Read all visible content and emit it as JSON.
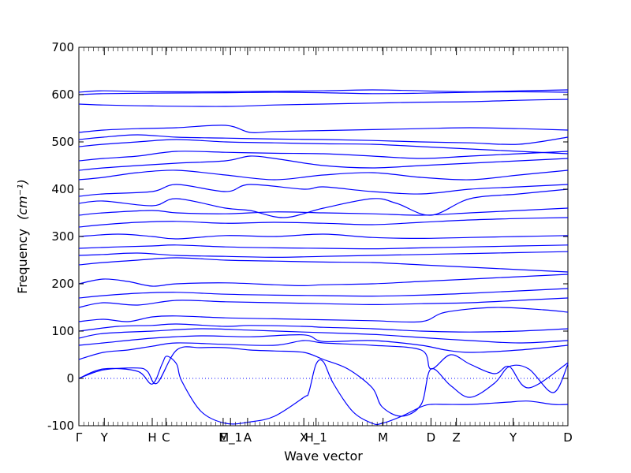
{
  "chart_data": {
    "type": "line",
    "xlabel": "Wave vector",
    "ylabel": "Frequency",
    "ylabel_unit": "(cm⁻¹)",
    "ylim": [
      -100,
      700
    ],
    "y_ticks": [
      -100,
      0,
      100,
      200,
      300,
      400,
      500,
      600,
      700
    ],
    "x_ticks": [
      {
        "label": "Γ",
        "x": 0.0
      },
      {
        "label": "Y",
        "x": 0.052
      },
      {
        "label": "H",
        "x": 0.15
      },
      {
        "label": "C",
        "x": 0.178
      },
      {
        "label": "E",
        "x": 0.295
      },
      {
        "label": "M_1",
        "x": 0.31
      },
      {
        "label": "A",
        "x": 0.345
      },
      {
        "label": "X",
        "x": 0.46
      },
      {
        "label": "H_1",
        "x": 0.485
      },
      {
        "label": "M",
        "x": 0.622
      },
      {
        "label": "D",
        "x": 0.72
      },
      {
        "label": "Z",
        "x": 0.772
      },
      {
        "label": "Y",
        "x": 0.888
      },
      {
        "label": "D",
        "x": 1.0
      }
    ],
    "zero_line": true,
    "colors": {
      "bands": "#0000ff",
      "axes": "#000000",
      "zero_line": "#0000ff"
    },
    "series": [
      {
        "x": [
          0,
          0.05,
          0.12,
          0.15,
          0.17,
          0.18,
          0.2,
          0.21,
          0.25,
          0.3,
          0.35,
          0.4,
          0.46,
          0.47,
          0.485,
          0.5,
          0.52,
          0.56,
          0.6,
          0.62,
          0.66,
          0.7,
          0.72,
          0.75,
          0.8,
          0.85,
          0.88,
          0.92,
          0.97,
          1.0
        ],
        "y": [
          0,
          20,
          15,
          -12,
          30,
          47,
          30,
          -5,
          -70,
          -95,
          -92,
          -80,
          -40,
          -30,
          30,
          35,
          -10,
          -70,
          -95,
          -95,
          -80,
          -60,
          -55,
          -55,
          -55,
          -52,
          -50,
          -48,
          -55,
          -55
        ]
      },
      {
        "x": [
          0,
          0.05,
          0.12,
          0.14,
          0.16,
          0.2,
          0.25,
          0.3,
          0.35,
          0.4,
          0.46,
          0.5,
          0.55,
          0.6,
          0.62,
          0.66,
          0.7,
          0.72,
          0.76,
          0.8,
          0.85,
          0.88,
          0.92,
          0.97,
          1.0
        ],
        "y": [
          0,
          18,
          22,
          15,
          -10,
          60,
          65,
          65,
          60,
          58,
          55,
          40,
          20,
          -20,
          -60,
          -80,
          -55,
          20,
          -15,
          -40,
          -10,
          25,
          20,
          -30,
          30
        ]
      },
      {
        "x": [
          0,
          0.05,
          0.1,
          0.15,
          0.2,
          0.3,
          0.4,
          0.46,
          0.5,
          0.6,
          0.7,
          0.72,
          0.76,
          0.8,
          0.85,
          0.88,
          0.92,
          1.0
        ],
        "y": [
          40,
          55,
          60,
          68,
          75,
          72,
          70,
          80,
          75,
          70,
          60,
          20,
          50,
          30,
          10,
          25,
          -20,
          33
        ]
      },
      {
        "x": [
          0,
          0.05,
          0.15,
          0.25,
          0.35,
          0.46,
          0.5,
          0.6,
          0.7,
          0.75,
          0.8,
          0.9,
          1.0
        ],
        "y": [
          70,
          75,
          85,
          90,
          88,
          92,
          78,
          80,
          70,
          60,
          55,
          60,
          70
        ]
      },
      {
        "x": [
          0,
          0.05,
          0.15,
          0.25,
          0.35,
          0.46,
          0.55,
          0.62,
          0.72,
          0.8,
          0.9,
          1.0
        ],
        "y": [
          85,
          95,
          100,
          105,
          102,
          98,
          95,
          92,
          85,
          80,
          75,
          80
        ]
      },
      {
        "x": [
          0,
          0.08,
          0.15,
          0.2,
          0.3,
          0.35,
          0.46,
          0.5,
          0.6,
          0.7,
          0.8,
          0.9,
          1.0
        ],
        "y": [
          100,
          110,
          112,
          115,
          110,
          112,
          110,
          108,
          105,
          100,
          98,
          100,
          105
        ]
      },
      {
        "x": [
          0,
          0.05,
          0.1,
          0.15,
          0.2,
          0.3,
          0.4,
          0.5,
          0.6,
          0.7,
          0.75,
          0.85,
          0.95,
          1.0
        ],
        "y": [
          120,
          125,
          120,
          130,
          132,
          128,
          126,
          124,
          122,
          120,
          140,
          150,
          145,
          140
        ]
      },
      {
        "x": [
          0,
          0.05,
          0.12,
          0.2,
          0.3,
          0.4,
          0.5,
          0.6,
          0.7,
          0.8,
          0.9,
          1.0
        ],
        "y": [
          150,
          160,
          155,
          165,
          162,
          160,
          158,
          156,
          158,
          160,
          165,
          170
        ]
      },
      {
        "x": [
          0,
          0.05,
          0.12,
          0.2,
          0.3,
          0.4,
          0.5,
          0.6,
          0.7,
          0.8,
          0.9,
          1.0
        ],
        "y": [
          170,
          175,
          180,
          182,
          178,
          176,
          175,
          174,
          176,
          180,
          185,
          190
        ]
      },
      {
        "x": [
          0,
          0.05,
          0.1,
          0.15,
          0.2,
          0.3,
          0.4,
          0.46,
          0.5,
          0.6,
          0.7,
          0.8,
          0.9,
          1.0
        ],
        "y": [
          200,
          210,
          205,
          195,
          200,
          202,
          198,
          196,
          198,
          200,
          205,
          210,
          215,
          220
        ]
      },
      {
        "x": [
          0,
          0.05,
          0.12,
          0.2,
          0.3,
          0.4,
          0.5,
          0.6,
          0.7,
          0.8,
          0.9,
          1.0
        ],
        "y": [
          240,
          245,
          250,
          255,
          250,
          248,
          246,
          245,
          240,
          235,
          230,
          225
        ]
      },
      {
        "x": [
          0,
          0.05,
          0.12,
          0.2,
          0.3,
          0.4,
          0.5,
          0.6,
          0.7,
          0.8,
          0.9,
          1.0
        ],
        "y": [
          260,
          262,
          265,
          260,
          258,
          256,
          258,
          260,
          262,
          264,
          266,
          268
        ]
      },
      {
        "x": [
          0,
          0.08,
          0.15,
          0.2,
          0.3,
          0.4,
          0.5,
          0.6,
          0.7,
          0.8,
          0.9,
          1.0
        ],
        "y": [
          275,
          278,
          280,
          282,
          278,
          276,
          275,
          274,
          276,
          278,
          280,
          282
        ]
      },
      {
        "x": [
          0,
          0.08,
          0.15,
          0.2,
          0.3,
          0.4,
          0.5,
          0.6,
          0.7,
          0.8,
          0.9,
          1.0
        ],
        "y": [
          300,
          305,
          300,
          295,
          302,
          300,
          305,
          298,
          296,
          298,
          300,
          302
        ]
      },
      {
        "x": [
          0,
          0.05,
          0.12,
          0.2,
          0.3,
          0.4,
          0.5,
          0.6,
          0.7,
          0.8,
          0.9,
          1.0
        ],
        "y": [
          320,
          325,
          330,
          332,
          328,
          330,
          328,
          325,
          330,
          335,
          338,
          340
        ]
      },
      {
        "x": [
          0,
          0.05,
          0.15,
          0.2,
          0.3,
          0.4,
          0.5,
          0.6,
          0.7,
          0.8,
          0.9,
          1.0
        ],
        "y": [
          345,
          350,
          355,
          350,
          348,
          352,
          350,
          348,
          345,
          350,
          355,
          360
        ]
      },
      {
        "x": [
          0,
          0.05,
          0.15,
          0.2,
          0.3,
          0.35,
          0.42,
          0.5,
          0.6,
          0.65,
          0.72,
          0.8,
          0.9,
          1.0
        ],
        "y": [
          370,
          375,
          365,
          380,
          360,
          355,
          340,
          360,
          380,
          370,
          345,
          380,
          390,
          400
        ]
      },
      {
        "x": [
          0,
          0.05,
          0.15,
          0.2,
          0.3,
          0.35,
          0.46,
          0.5,
          0.6,
          0.7,
          0.8,
          0.9,
          1.0
        ],
        "y": [
          385,
          390,
          395,
          410,
          395,
          410,
          400,
          405,
          395,
          390,
          400,
          405,
          410
        ]
      },
      {
        "x": [
          0,
          0.05,
          0.12,
          0.2,
          0.3,
          0.4,
          0.5,
          0.6,
          0.7,
          0.8,
          0.9,
          1.0
        ],
        "y": [
          420,
          425,
          435,
          440,
          430,
          420,
          430,
          435,
          425,
          420,
          430,
          440
        ]
      },
      {
        "x": [
          0,
          0.05,
          0.12,
          0.2,
          0.3,
          0.35,
          0.4,
          0.5,
          0.6,
          0.7,
          0.8,
          0.9,
          1.0
        ],
        "y": [
          440,
          445,
          450,
          455,
          460,
          470,
          465,
          450,
          445,
          450,
          455,
          460,
          465
        ]
      },
      {
        "x": [
          0,
          0.05,
          0.12,
          0.2,
          0.3,
          0.4,
          0.5,
          0.6,
          0.7,
          0.8,
          0.9,
          1.0
        ],
        "y": [
          460,
          465,
          470,
          480,
          478,
          476,
          475,
          470,
          465,
          470,
          475,
          480
        ]
      },
      {
        "x": [
          0,
          0.05,
          0.12,
          0.2,
          0.3,
          0.4,
          0.5,
          0.6,
          0.7,
          0.8,
          0.9,
          1.0
        ],
        "y": [
          490,
          495,
          500,
          505,
          500,
          498,
          496,
          495,
          490,
          485,
          480,
          475
        ]
      },
      {
        "x": [
          0,
          0.05,
          0.12,
          0.2,
          0.3,
          0.4,
          0.5,
          0.6,
          0.7,
          0.8,
          0.9,
          1.0
        ],
        "y": [
          505,
          510,
          515,
          510,
          508,
          506,
          505,
          503,
          500,
          498,
          495,
          510
        ]
      },
      {
        "x": [
          0,
          0.05,
          0.12,
          0.2,
          0.3,
          0.35,
          0.4,
          0.5,
          0.6,
          0.7,
          0.8,
          0.9,
          1.0
        ],
        "y": [
          520,
          525,
          528,
          530,
          535,
          520,
          522,
          524,
          526,
          528,
          530,
          528,
          525
        ]
      },
      {
        "x": [
          0,
          0.05,
          0.15,
          0.3,
          0.4,
          0.5,
          0.6,
          0.7,
          0.8,
          0.9,
          1.0
        ],
        "y": [
          580,
          578,
          576,
          575,
          578,
          580,
          582,
          584,
          585,
          588,
          590
        ]
      },
      {
        "x": [
          0,
          0.05,
          0.15,
          0.3,
          0.4,
          0.5,
          0.6,
          0.7,
          0.8,
          0.9,
          1.0
        ],
        "y": [
          600,
          602,
          603,
          604,
          605,
          604,
          602,
          603,
          605,
          606,
          605
        ]
      },
      {
        "x": [
          0,
          0.05,
          0.15,
          0.3,
          0.4,
          0.5,
          0.6,
          0.7,
          0.8,
          0.9,
          1.0
        ],
        "y": [
          605,
          608,
          606,
          606,
          607,
          608,
          610,
          608,
          606,
          608,
          610
        ]
      }
    ]
  }
}
